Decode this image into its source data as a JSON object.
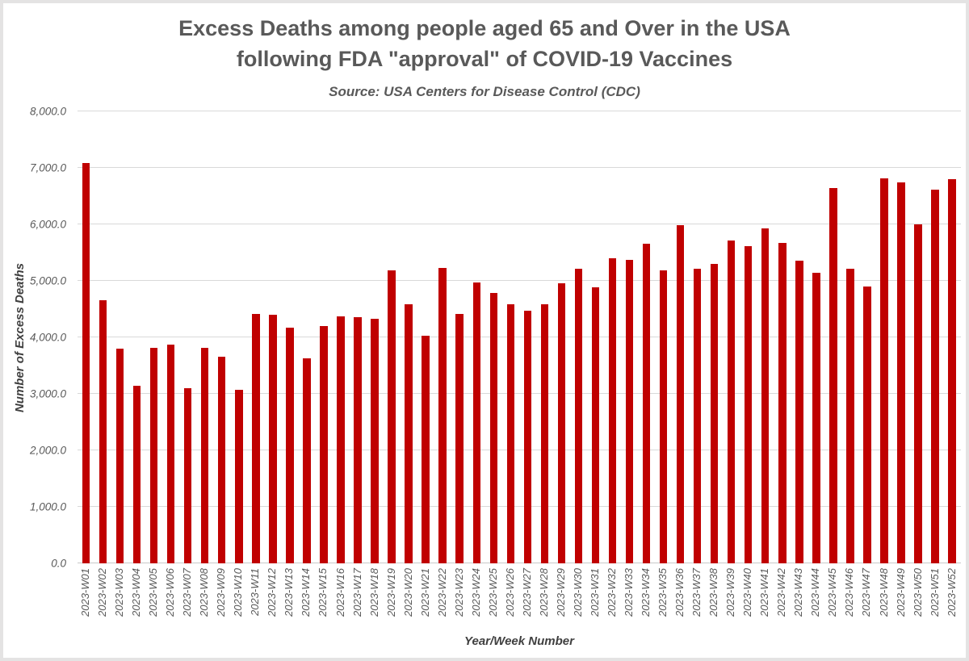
{
  "chart_data": {
    "type": "bar",
    "title": "Excess Deaths among people aged 65 and Over in the USA following FDA \"approval\" of COVID-19 Vaccines",
    "title_lines": [
      "Excess Deaths among people aged 65 and Over in the USA",
      "following FDA \"approval\" of COVID-19 Vaccines"
    ],
    "subtitle": "Source: USA Centers for Disease Control (CDC)",
    "xlabel": "Year/Week Number",
    "ylabel": "Number of Excess Deaths",
    "ylim": [
      0,
      8000
    ],
    "ytick_step": 1000,
    "yticks": [
      "0.0",
      "1,000.0",
      "2,000.0",
      "3,000.0",
      "4,000.0",
      "5,000.0",
      "6,000.0",
      "7,000.0",
      "8,000.0"
    ],
    "grid": "horizontal",
    "legend": "none",
    "bar_color": "#c00000",
    "gridline_color": "#d9d9d9",
    "categories": [
      "2023-W01",
      "2023-W02",
      "2023-W03",
      "2023-W04",
      "2023-W05",
      "2023-W06",
      "2023-W07",
      "2023-W08",
      "2023-W09",
      "2023-W10",
      "2023-W11",
      "2023-W12",
      "2023-W13",
      "2023-W14",
      "2023-W15",
      "2023-W16",
      "2023-W17",
      "2023-W18",
      "2023-W19",
      "2023-W20",
      "2023-W21",
      "2023-W22",
      "2023-W23",
      "2023-W24",
      "2023-W25",
      "2023-W26",
      "2023-W27",
      "2023-W28",
      "2023-W29",
      "2023-W30",
      "2023-W31",
      "2023-W32",
      "2023-W33",
      "2023-W34",
      "2023-W35",
      "2023-W36",
      "2023-W37",
      "2023-W38",
      "2023-W39",
      "2023-W40",
      "2023-W41",
      "2023-W42",
      "2023-W43",
      "2023-W44",
      "2023-W45",
      "2023-W46",
      "2023-W47",
      "2023-W48",
      "2023-W49",
      "2023-W50",
      "2023-W51",
      "2023-W52"
    ],
    "values": [
      7090,
      4660,
      3800,
      3140,
      3820,
      3870,
      3100,
      3810,
      3660,
      3070,
      4410,
      4400,
      4170,
      3630,
      4200,
      4370,
      4360,
      4330,
      5180,
      4590,
      4030,
      5230,
      4420,
      4970,
      4780,
      4590,
      4470,
      4590,
      4960,
      5220,
      4890,
      5400,
      5370,
      5660,
      5180,
      5980,
      5210,
      5300,
      5720,
      5610,
      5930,
      5670,
      5360,
      5140,
      6640,
      5220,
      4900,
      6810,
      6740,
      6000,
      6620,
      6800
    ]
  }
}
